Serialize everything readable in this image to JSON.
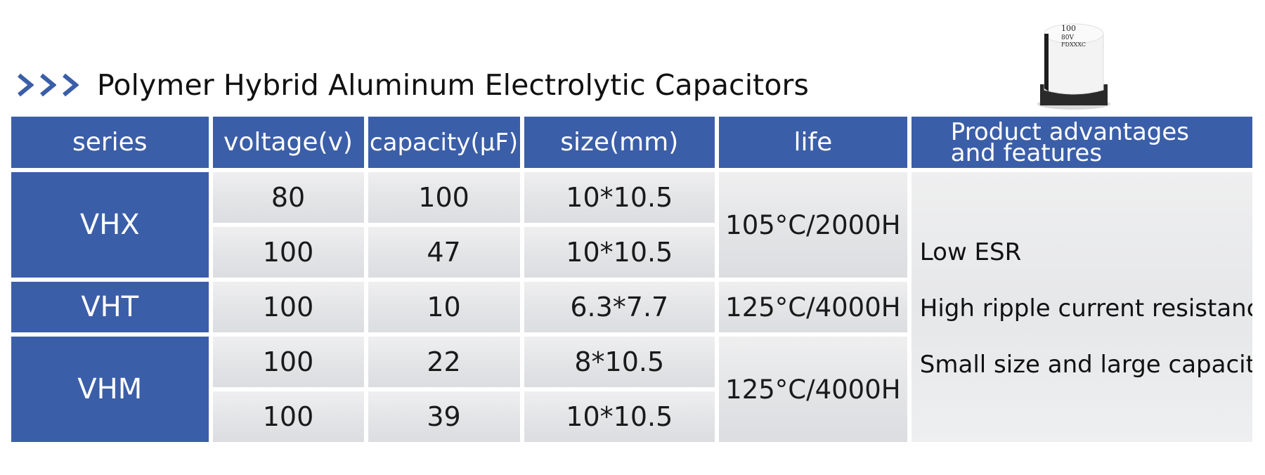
{
  "title": "Polymer Hybrid Aluminum Electrolytic Capacitors",
  "accent_color": "#3b5ea8",
  "icons": [
    "chevron-right-icon",
    "capacitor-product-image"
  ],
  "product_image": {
    "marking_lines": [
      "100",
      "80V",
      "FDXXXC"
    ]
  },
  "table": {
    "headers": {
      "series": "series",
      "voltage": "voltage(v)",
      "capacity": "capacity(μF)",
      "size": "size(mm)",
      "life": "life",
      "advantages_line1": "Product advantages",
      "advantages_line2": "and features"
    },
    "series": [
      {
        "name": "VHX",
        "life": "105°C/2000H",
        "rows": [
          {
            "voltage": "80",
            "capacity": "100",
            "size": "10*10.5"
          },
          {
            "voltage": "100",
            "capacity": "47",
            "size": "10*10.5"
          }
        ]
      },
      {
        "name": "VHT",
        "life": "125°C/4000H",
        "rows": [
          {
            "voltage": "100",
            "capacity": "10",
            "size": "6.3*7.7"
          }
        ]
      },
      {
        "name": "VHM",
        "life": "125°C/4000H",
        "rows": [
          {
            "voltage": "100",
            "capacity": "22",
            "size": "8*10.5"
          },
          {
            "voltage": "100",
            "capacity": "39",
            "size": "10*10.5"
          }
        ]
      }
    ],
    "advantages": [
      "Low ESR",
      "High ripple current resistance",
      "Small size and large capacity"
    ]
  }
}
